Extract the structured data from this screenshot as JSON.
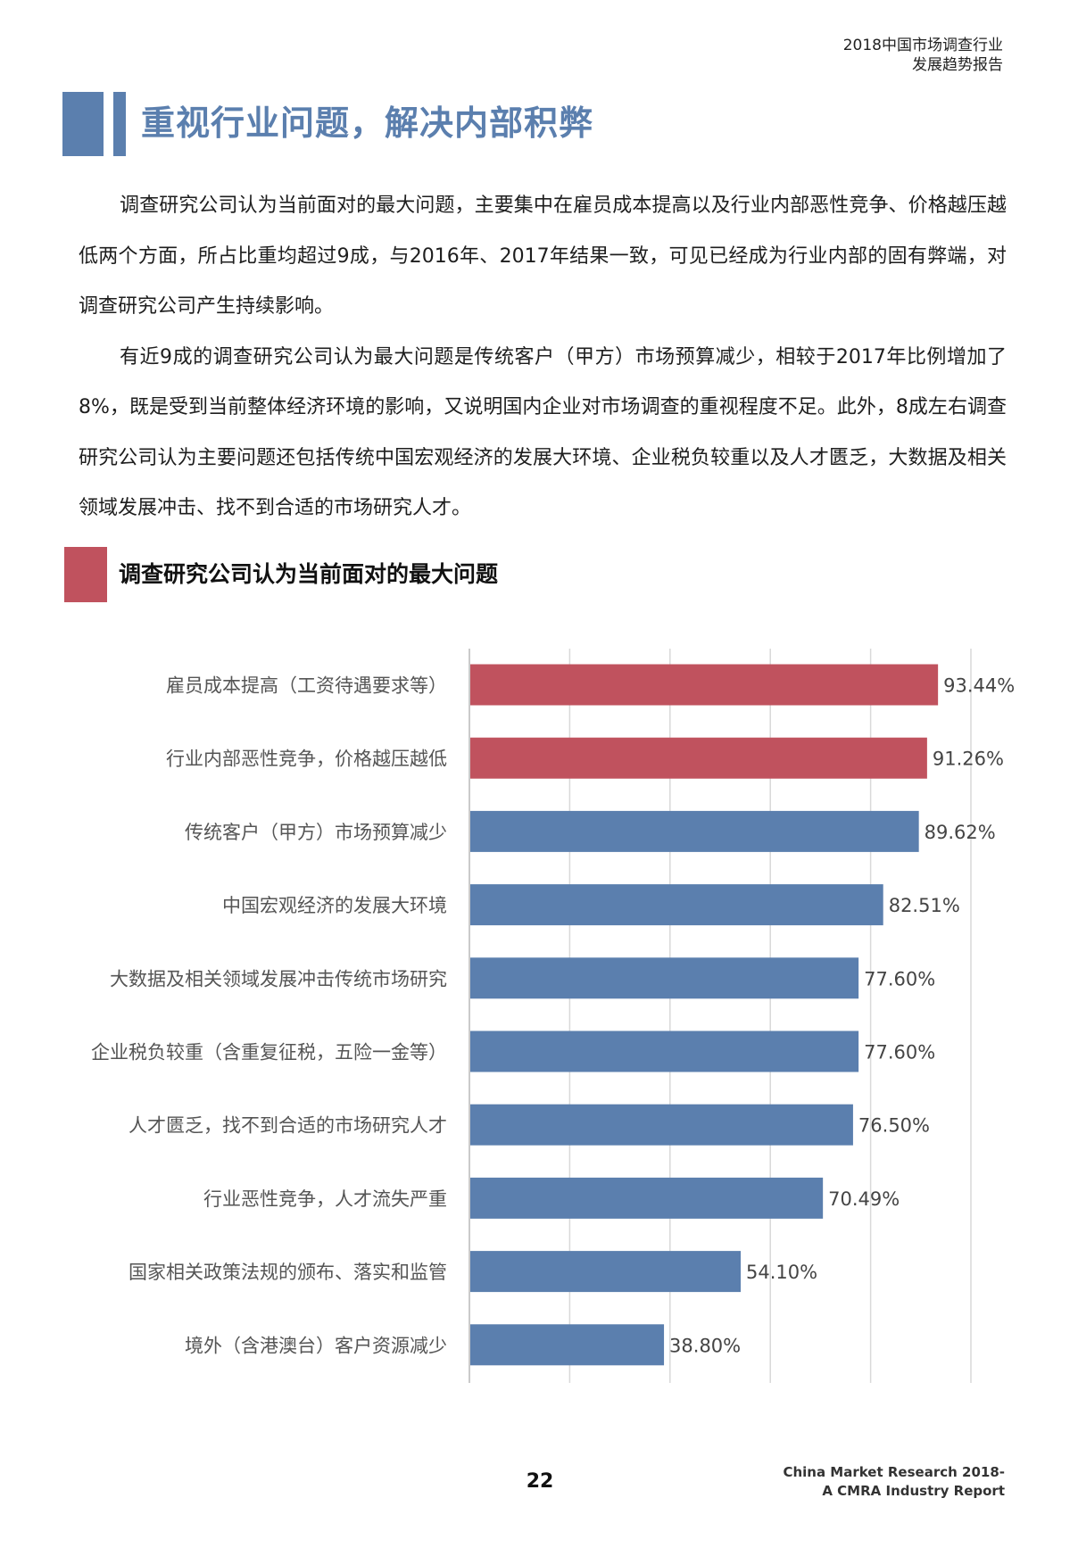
{
  "header": {
    "line1": "2018中国市场调查行业",
    "line2": "发展趋势报告"
  },
  "title": "重视行业问题，解决内部积弊",
  "paragraphs": [
    "调查研究公司认为当前面对的最大问题，主要集中在雇员成本提高以及行业内部恶性竞争、价格越压越低两个方面，所占比重均超过9成，与2016年、2017年结果一致，可见已经成为行业内部的固有弊端，对调查研究公司产生持续影响。",
    "有近9成的调查研究公司认为最大问题是传统客户（甲方）市场预算减少，相较于2017年比例增加了8%，既是受到当前整体经济环境的影响，又说明国内企业对市场调查的重视程度不足。此外，8成左右调查研究公司认为主要问题还包括传统中国宏观经济的发展大环境、企业税负较重以及人才匮乏，大数据及相关领域发展冲击、找不到合适的市场研究人才。"
  ],
  "section_title": "调查研究公司认为当前面对的最大问题",
  "chart_data": {
    "type": "bar",
    "orientation": "horizontal",
    "categories": [
      "雇员成本提高（工资待遇要求等）",
      "行业内部恶性竞争，价格越压越低",
      "传统客户（甲方）市场预算减少",
      "中国宏观经济的发展大环境",
      "大数据及相关领域发展冲击传统市场研究",
      "企业税负较重（含重复征税，五险一金等）",
      "人才匮乏，找不到合适的市场研究人才",
      "行业恶性竞争，人才流失严重",
      "国家相关政策法规的颁布、落实和监管",
      "境外（含港澳台）客户资源减少"
    ],
    "values": [
      93.44,
      91.26,
      89.62,
      82.51,
      77.6,
      77.6,
      76.5,
      70.49,
      54.1,
      38.8
    ],
    "labels": [
      "93.44%",
      "91.26%",
      "89.62%",
      "82.51%",
      "77.60%",
      "77.60%",
      "76.50%",
      "70.49%",
      "54.10%",
      "38.80%"
    ],
    "highlight": [
      true,
      true,
      false,
      false,
      false,
      false,
      false,
      false,
      false,
      false
    ],
    "xlim": [
      0,
      100
    ],
    "grid": true,
    "colors": {
      "highlight": "#c0525e",
      "default": "#5b7fae",
      "grid": "#d9d9d9"
    }
  },
  "footer": {
    "page_number": "22",
    "line1": "China Market Research 2018-",
    "line2": "A CMRA Industry Report"
  }
}
